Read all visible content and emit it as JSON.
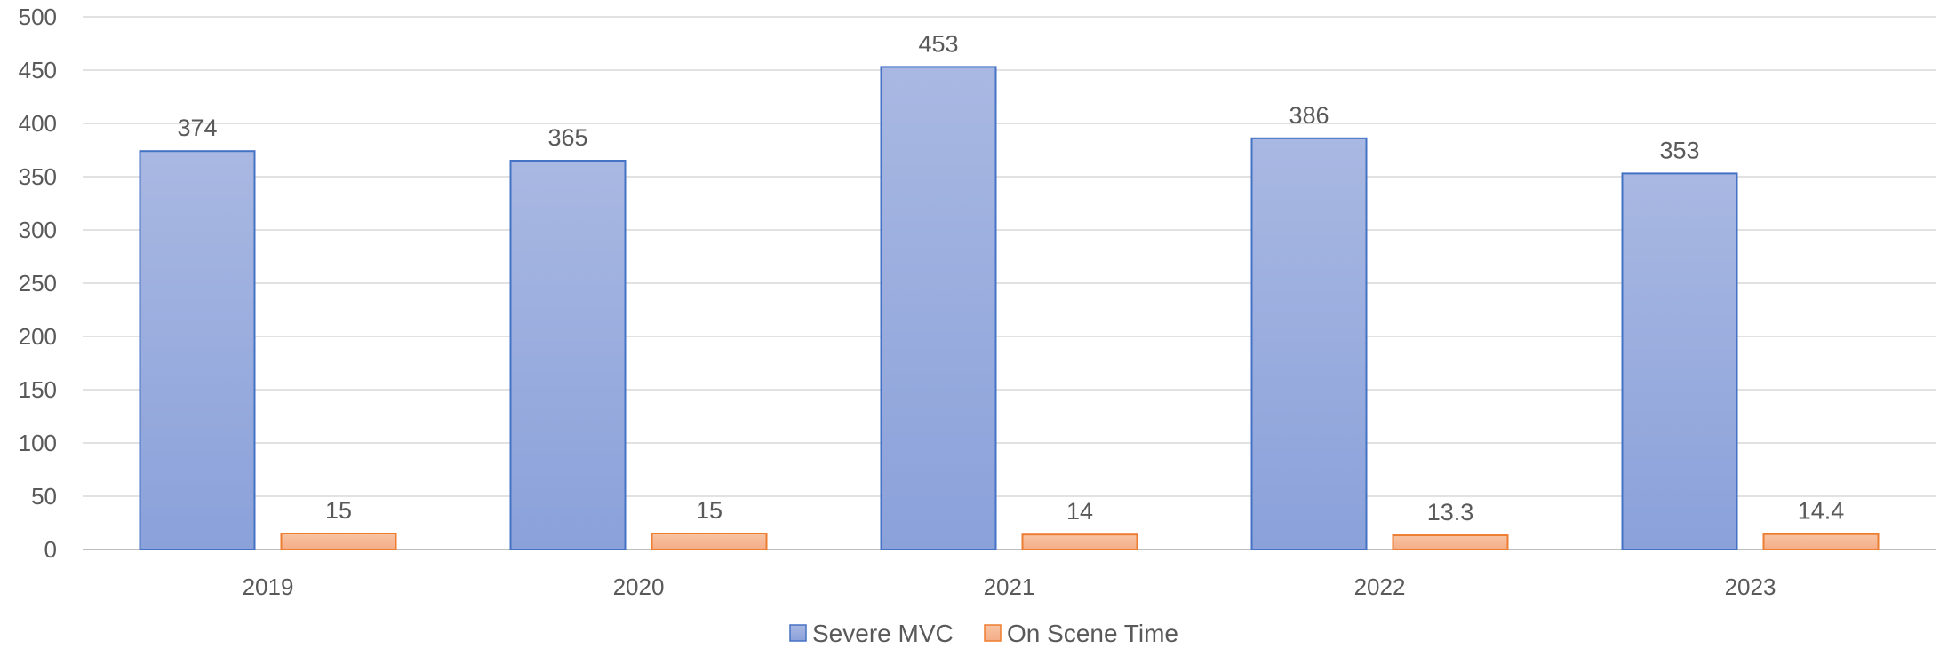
{
  "chart_data": {
    "type": "bar",
    "categories": [
      "2019",
      "2020",
      "2021",
      "2022",
      "2023"
    ],
    "series": [
      {
        "name": "Severe MVC",
        "values": [
          374,
          365,
          453,
          386,
          353
        ],
        "data_labels": [
          "374",
          "365",
          "453",
          "386",
          "353"
        ],
        "color": "#8fa5db",
        "border_color": "#4472c4"
      },
      {
        "name": "On Scene Time",
        "values": [
          15,
          15,
          14,
          13.3,
          14.4
        ],
        "data_labels": [
          "15",
          "15",
          "14",
          "13.3",
          "14.4"
        ],
        "color": "#f4b183",
        "border_color": "#ed7d31"
      }
    ],
    "y_ticks": [
      "0",
      "50",
      "100",
      "150",
      "200",
      "250",
      "300",
      "350",
      "400",
      "450",
      "500"
    ],
    "ylim": [
      0,
      500
    ],
    "grid": true,
    "legend": "bottom-center"
  }
}
